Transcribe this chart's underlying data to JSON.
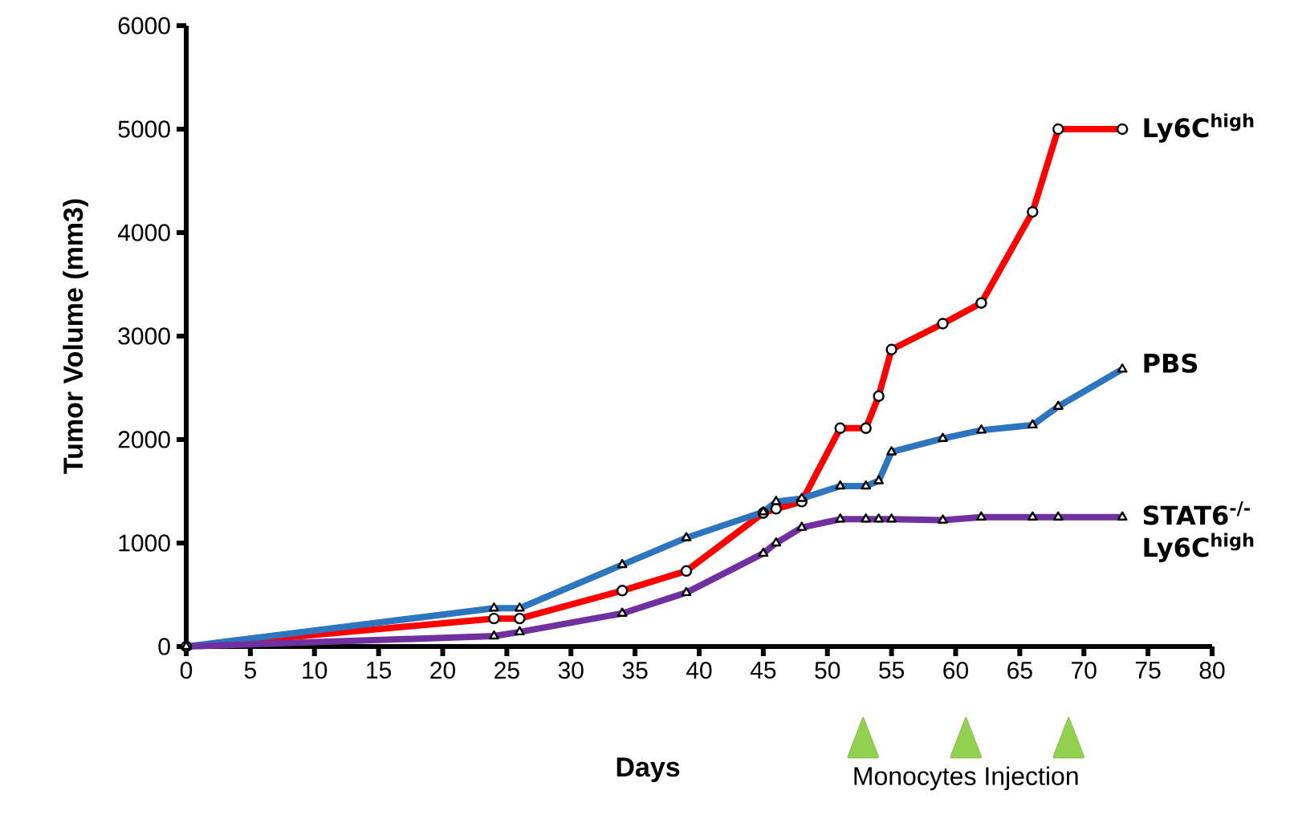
{
  "chart_data": {
    "type": "line",
    "xlabel": "Days",
    "ylabel": "Tumor Volume (mm3)",
    "xlim": [
      0,
      80
    ],
    "xticks": [
      0,
      5,
      10,
      15,
      20,
      25,
      30,
      35,
      40,
      45,
      50,
      55,
      60,
      65,
      70,
      75,
      80
    ],
    "ylim": [
      0,
      6000
    ],
    "yticks": [
      0,
      1000,
      2000,
      3000,
      4000,
      5000,
      6000
    ],
    "legend": false,
    "grid": false,
    "line_style": "solid",
    "series": [
      {
        "name": "Ly6C$^{high}$",
        "color": "#ff0000",
        "marker": "circle",
        "x": [
          0,
          24,
          26,
          34,
          39,
          45,
          46,
          48,
          51,
          53,
          54,
          55,
          59,
          62,
          66,
          68,
          73
        ],
        "values": [
          0,
          270,
          270,
          540,
          730,
          1290,
          1330,
          1400,
          2110,
          2110,
          2420,
          2870,
          3120,
          3320,
          4200,
          5000,
          5000
        ]
      },
      {
        "name": "PBS",
        "color": "#2e75c0",
        "marker": "triangle",
        "x": [
          0,
          24,
          26,
          34,
          39,
          45,
          46,
          48,
          51,
          53,
          54,
          55,
          59,
          62,
          66,
          68,
          73
        ],
        "values": [
          0,
          370,
          370,
          790,
          1050,
          1300,
          1400,
          1430,
          1550,
          1550,
          1600,
          1880,
          2010,
          2090,
          2140,
          2320,
          2680
        ]
      },
      {
        "name": "STAT6$^{-/-}$ Ly6C$^{high}$",
        "color": "#7030a0",
        "marker": "triangle",
        "x": [
          0,
          24,
          26,
          34,
          39,
          45,
          46,
          48,
          51,
          53,
          54,
          55,
          59,
          62,
          66,
          68,
          73
        ],
        "values": [
          0,
          100,
          140,
          320,
          520,
          900,
          1000,
          1150,
          1230,
          1230,
          1230,
          1230,
          1220,
          1250,
          1250,
          1250,
          1250
        ]
      }
    ],
    "annotations": [
      "Monocytes Injection"
    ]
  }
}
